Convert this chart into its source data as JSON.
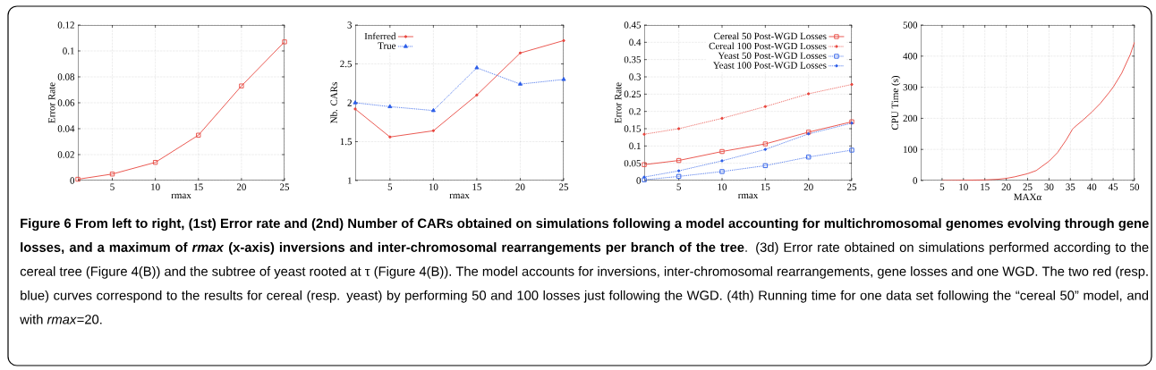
{
  "chart_data": [
    {
      "type": "line",
      "xlabel": "rmax",
      "ylabel": "Error Rate",
      "x": [
        1,
        5,
        10,
        15,
        20,
        25
      ],
      "xlim": [
        1,
        25
      ],
      "xticks": [
        5,
        10,
        15,
        20,
        25
      ],
      "ylim": [
        0,
        0.12
      ],
      "yticks": [
        0,
        0.02,
        0.04,
        0.06,
        0.08,
        0.1,
        0.12
      ],
      "grid": true,
      "legend": false,
      "series": [
        {
          "color": "#e8473f",
          "marker": "square",
          "line_style": "solid",
          "values": [
            0.001,
            0.005,
            0.014,
            0.035,
            0.073,
            0.107
          ]
        }
      ]
    },
    {
      "type": "line",
      "xlabel": "rmax",
      "ylabel": "Nb. CARs",
      "x": [
        1,
        5,
        10,
        15,
        20,
        25
      ],
      "xlim": [
        1,
        25
      ],
      "xticks": [
        5,
        10,
        15,
        20,
        25
      ],
      "ylim": [
        1,
        3
      ],
      "yticks": [
        1,
        1.5,
        2,
        2.5,
        3
      ],
      "grid": true,
      "legend": "top left",
      "series": [
        {
          "name": "Inferred",
          "color": "#e8473f",
          "marker": "circle",
          "line_style": "solid",
          "values": [
            1.92,
            1.56,
            1.64,
            2.1,
            2.64,
            2.8
          ]
        },
        {
          "name": "True",
          "color": "#2a5ce8",
          "marker": "triangle",
          "line_style": "dotted",
          "values": [
            2.0,
            1.95,
            1.9,
            2.45,
            2.24,
            2.3
          ]
        }
      ]
    },
    {
      "type": "line",
      "xlabel": "rmax",
      "ylabel": "Error Rate",
      "x": [
        1,
        5,
        10,
        15,
        20,
        25
      ],
      "xlim": [
        1,
        25
      ],
      "xticks": [
        5,
        10,
        15,
        20,
        25
      ],
      "ylim": [
        0,
        0.45
      ],
      "yticks": [
        0,
        0.05,
        0.1,
        0.15,
        0.2,
        0.25,
        0.3,
        0.35,
        0.4,
        0.45
      ],
      "grid": true,
      "legend": "top right",
      "series": [
        {
          "name": "Cereal 50 Post-WGD Losses",
          "color": "#e8473f",
          "marker": "square",
          "line_style": "solid",
          "values": [
            0.046,
            0.058,
            0.084,
            0.106,
            0.14,
            0.17
          ]
        },
        {
          "name": "Cereal 100 Post-WGD Losses",
          "color": "#e8473f",
          "marker": "circle",
          "line_style": "dotted",
          "values": [
            0.134,
            0.15,
            0.18,
            0.214,
            0.251,
            0.278
          ]
        },
        {
          "name": "Yeast 50 Post-WGD Losses",
          "color": "#2a5ce8",
          "marker": "square",
          "line_style": "dotted",
          "values": [
            0.002,
            0.012,
            0.026,
            0.043,
            0.068,
            0.088
          ]
        },
        {
          "name": "Yeast 100 Post-WGD Losses",
          "color": "#2a5ce8",
          "marker": "circle",
          "line_style": "dotted",
          "values": [
            0.01,
            0.028,
            0.057,
            0.09,
            0.135,
            0.166
          ]
        }
      ]
    },
    {
      "type": "line",
      "xlabel": "MAXα",
      "ylabel": "CPU Time (s)",
      "xlim": [
        0,
        50
      ],
      "xticks": [
        5,
        10,
        15,
        20,
        25,
        30,
        35,
        40,
        45,
        50
      ],
      "ylim": [
        0,
        500
      ],
      "yticks": [
        0,
        100,
        200,
        300,
        400,
        500
      ],
      "grid": true,
      "legend": false,
      "series": [
        {
          "color": "#e8473f",
          "marker": "none",
          "line_style": "solid",
          "x": [
            5,
            10,
            15,
            18,
            20,
            22,
            25,
            27,
            30,
            32,
            34,
            35.5,
            36,
            38,
            40,
            42,
            44,
            45,
            47,
            49,
            50
          ],
          "values": [
            0,
            1,
            2,
            4,
            7,
            12,
            22,
            32,
            62,
            90,
            130,
            165,
            172,
            195,
            220,
            248,
            282,
            300,
            345,
            405,
            445
          ]
        }
      ]
    },
    {
      "type": "other",
      "title": "Figure 6 From left to right, (1st) Error rate and (2nd) Number of CARs obtained on simulations following a model accounting for multichromosomal genomes evolving through gene losses, and a maximum of *rmax* (x-axis) inversions and inter-chromosomal rearrangements per branch of the tree",
      "annotations": [
        ". (3d) Error rate obtained on simulations performed according to the cereal tree (Figure 4(B)) and the subtree of yeast rooted at τ (Figure 4(B)). The model accounts for inversions, inter-chromosomal rearrangements, gene losses and one WGD. The two red (resp. blue) curves correspond to the results for cereal (resp. yeast) by performing 50 and 100 losses just following the WGD. (4th) Running time for one data set following the “cereal 50” model, and with *rmax*=20."
      ]
    }
  ]
}
